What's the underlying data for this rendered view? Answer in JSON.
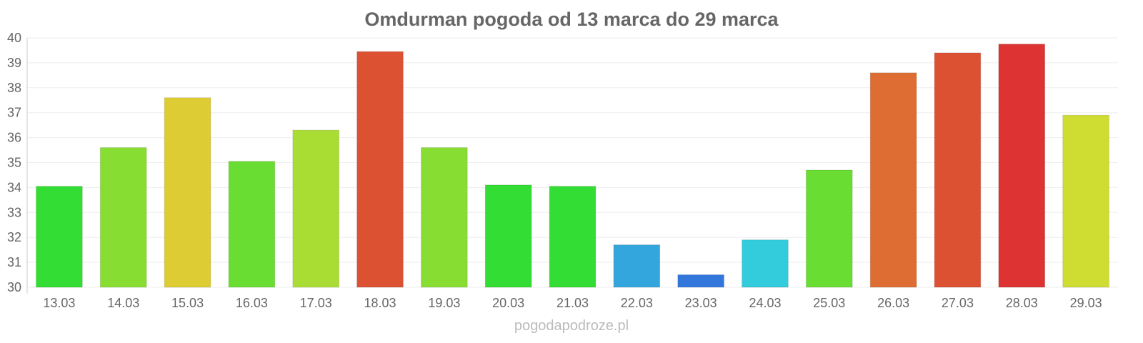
{
  "chart_data": {
    "type": "bar",
    "title": "Omdurman pogoda od 13 marca do 29 marca",
    "xlabel": "",
    "ylabel": "",
    "ylim": [
      30,
      40
    ],
    "yticks": [
      30,
      31,
      32,
      33,
      34,
      35,
      36,
      37,
      38,
      39,
      40
    ],
    "grid": true,
    "legend": "none",
    "categories": [
      "13.03",
      "14.03",
      "15.03",
      "16.03",
      "17.03",
      "18.03",
      "19.03",
      "20.03",
      "21.03",
      "22.03",
      "23.03",
      "24.03",
      "25.03",
      "26.03",
      "27.03",
      "28.03",
      "29.03"
    ],
    "values": [
      34.05,
      35.6,
      37.6,
      35.05,
      36.3,
      39.45,
      35.6,
      34.1,
      34.05,
      31.7,
      30.5,
      31.9,
      34.7,
      38.6,
      39.4,
      39.75,
      36.9
    ],
    "colors": [
      "#33dd33",
      "#88dd33",
      "#ddcc33",
      "#6add33",
      "#aadd33",
      "#dd5133",
      "#88dd33",
      "#33dd33",
      "#33dd33",
      "#33a6dd",
      "#3377dd",
      "#33ccdd",
      "#6add33",
      "#dd6d33",
      "#dd5133",
      "#dd3333",
      "#cfdd33"
    ]
  },
  "watermark": "pogodapodroze.pl"
}
